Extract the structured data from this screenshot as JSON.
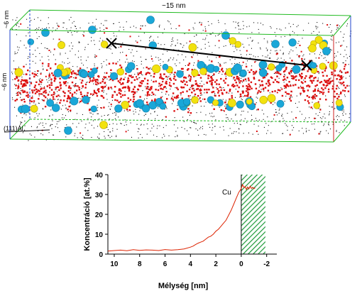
{
  "reconstruction": {
    "length_label": "~15 nm",
    "depth_label": "~6 nm",
    "height_label": "~6 nm",
    "plane_label": "(111)Al",
    "colors": {
      "matrix": "#111111",
      "copper": "#dd1111",
      "species_a": "#1aa7d8",
      "species_b": "#f2e20f",
      "box_green": "#22bb22",
      "box_blue": "#2244cc",
      "box_red": "#cc2222",
      "line": "#000000"
    }
  },
  "chart_data": {
    "type": "line",
    "title": "",
    "xlabel": "Mélység [nm]",
    "ylabel": "Koncentráció [at.%]",
    "xlim": [
      10.5,
      -2.8
    ],
    "ylim": [
      0,
      40
    ],
    "x_ticks": [
      10,
      8,
      6,
      4,
      2,
      0,
      -2
    ],
    "y_ticks": [
      0,
      10,
      20,
      30,
      40
    ],
    "x_tick_labels": [
      "10",
      "8",
      "6",
      "4",
      "2",
      "0",
      "-2"
    ],
    "y_tick_labels": [
      "0",
      "10",
      "20",
      "30",
      "40"
    ],
    "grid": false,
    "shaded_region": {
      "x_from": 0,
      "x_to": -1.9,
      "pattern": "green-hatch"
    },
    "series": [
      {
        "name": "Cu",
        "color": "#dd2200",
        "x": [
          10.5,
          10.0,
          9.5,
          9.0,
          8.5,
          8.0,
          7.5,
          7.0,
          6.5,
          6.0,
          5.5,
          5.0,
          4.5,
          4.0,
          3.8,
          3.6,
          3.4,
          3.2,
          3.0,
          2.8,
          2.6,
          2.4,
          2.2,
          2.0,
          1.8,
          1.6,
          1.4,
          1.2,
          1.0,
          0.8,
          0.6,
          0.4,
          0.2,
          0.0,
          -0.1,
          -0.2,
          -0.3,
          -0.4,
          -0.5,
          -0.6,
          -0.7,
          -0.8,
          -0.9,
          -1.0,
          -1.1
        ],
        "y": [
          1.5,
          1.8,
          2.0,
          1.7,
          2.2,
          1.9,
          2.1,
          2.0,
          1.8,
          2.3,
          2.0,
          2.2,
          2.6,
          3.5,
          4.0,
          4.8,
          5.5,
          6.0,
          6.5,
          7.5,
          8.5,
          9.0,
          10.0,
          11.5,
          12.5,
          14.0,
          15.5,
          17.0,
          19.5,
          22.0,
          25.0,
          28.0,
          31.0,
          33.0,
          35.0,
          33.5,
          34.0,
          32.5,
          33.8,
          32.8,
          34.2,
          33.0,
          33.6,
          32.9,
          33.4
        ]
      }
    ]
  }
}
